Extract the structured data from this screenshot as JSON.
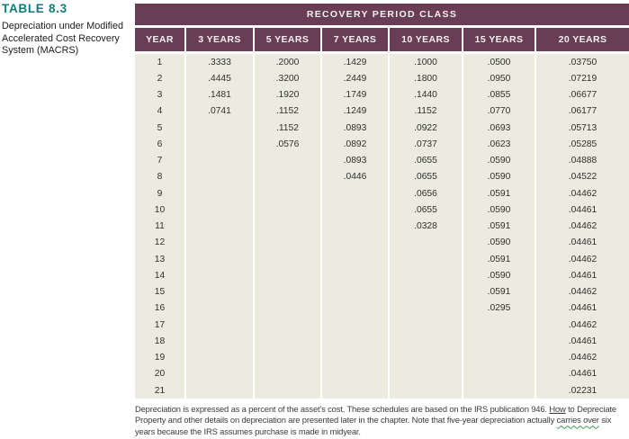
{
  "caption": {
    "label": "TABLE 8.3",
    "description": "Depreciation under Modified\nAccelerated Cost Recovery\nSystem (MACRS)"
  },
  "table": {
    "title": "RECOVERY PERIOD CLASS",
    "columns": [
      "YEAR",
      "3 YEARS",
      "5 YEARS",
      "7 YEARS",
      "10 YEARS",
      "15 YEARS",
      "20 YEARS"
    ],
    "rows": [
      [
        "1",
        ".3333",
        ".2000",
        ".1429",
        ".1000",
        ".0500",
        ".03750"
      ],
      [
        "2",
        ".4445",
        ".3200",
        ".2449",
        ".1800",
        ".0950",
        ".07219"
      ],
      [
        "3",
        ".1481",
        ".1920",
        ".1749",
        ".1440",
        ".0855",
        ".06677"
      ],
      [
        "4",
        ".0741",
        ".1152",
        ".1249",
        ".1152",
        ".0770",
        ".06177"
      ],
      [
        "5",
        "",
        ".1152",
        ".0893",
        ".0922",
        ".0693",
        ".05713"
      ],
      [
        "6",
        "",
        ".0576",
        ".0892",
        ".0737",
        ".0623",
        ".05285"
      ],
      [
        "7",
        "",
        "",
        ".0893",
        ".0655",
        ".0590",
        ".04888"
      ],
      [
        "8",
        "",
        "",
        ".0446",
        ".0655",
        ".0590",
        ".04522"
      ],
      [
        "9",
        "",
        "",
        "",
        ".0656",
        ".0591",
        ".04462"
      ],
      [
        "10",
        "",
        "",
        "",
        ".0655",
        ".0590",
        ".04461"
      ],
      [
        "11",
        "",
        "",
        "",
        ".0328",
        ".0591",
        ".04462"
      ],
      [
        "12",
        "",
        "",
        "",
        "",
        ".0590",
        ".04461"
      ],
      [
        "13",
        "",
        "",
        "",
        "",
        ".0591",
        ".04462"
      ],
      [
        "14",
        "",
        "",
        "",
        "",
        ".0590",
        ".04461"
      ],
      [
        "15",
        "",
        "",
        "",
        "",
        ".0591",
        ".04462"
      ],
      [
        "16",
        "",
        "",
        "",
        "",
        ".0295",
        ".04461"
      ],
      [
        "17",
        "",
        "",
        "",
        "",
        "",
        ".04462"
      ],
      [
        "18",
        "",
        "",
        "",
        "",
        "",
        ".04461"
      ],
      [
        "19",
        "",
        "",
        "",
        "",
        "",
        ".04462"
      ],
      [
        "20",
        "",
        "",
        "",
        "",
        "",
        ".04461"
      ],
      [
        "21",
        "",
        "",
        "",
        "",
        "",
        ".02231"
      ]
    ]
  },
  "footnote": {
    "part1": "Depreciation is expressed as a percent of the asset's cost. These schedules are based on the IRS publication 946. ",
    "underlined": "How",
    "part2": " to Depreciate Property and other details on depreciation are presented later in the chapter. Note that five-year depreciation actually ",
    "wavy": "carries over",
    "part3": " six years because the IRS assumes purchase is made in midyear."
  },
  "colors": {
    "header_purple": "#693d56",
    "body_beige": "#ecebdf",
    "label_teal": "#0e7d7a",
    "wavy_green": "#3a9a4a"
  }
}
